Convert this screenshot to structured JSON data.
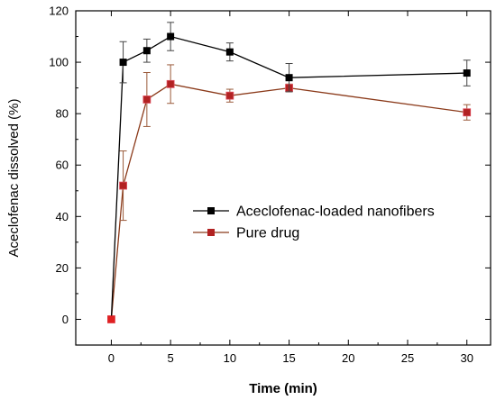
{
  "chart_data": {
    "type": "line",
    "title": "",
    "xlabel": "Time (min)",
    "ylabel": "Aceclofenac dissolved (%)",
    "xlim": [
      -3,
      32
    ],
    "ylim": [
      -10,
      120
    ],
    "xticks": [
      0,
      5,
      10,
      15,
      20,
      25,
      30
    ],
    "yticks": [
      0,
      20,
      40,
      60,
      80,
      100,
      120
    ],
    "grid": false,
    "legend_position": "center-right",
    "series": [
      {
        "name": "Aceclofenac-loaded nanofibers",
        "color": "#000000",
        "line_color": "#000000",
        "marker": "square",
        "x": [
          0,
          1,
          3,
          5,
          10,
          15,
          30
        ],
        "y": [
          0,
          100,
          104.5,
          110,
          104,
          94,
          95.8
        ],
        "err": [
          0,
          8,
          4.5,
          5.5,
          3.5,
          5.5,
          5
        ]
      },
      {
        "name": "Pure drug",
        "color": "#b22222",
        "line_color": "#8b3a1a",
        "marker": "square",
        "x": [
          0,
          1,
          3,
          5,
          10,
          15,
          30
        ],
        "y": [
          0,
          52,
          85.5,
          91.5,
          87,
          90,
          80.5
        ],
        "err": [
          0,
          13.5,
          10.5,
          7.5,
          2.5,
          1.5,
          3
        ]
      }
    ]
  }
}
